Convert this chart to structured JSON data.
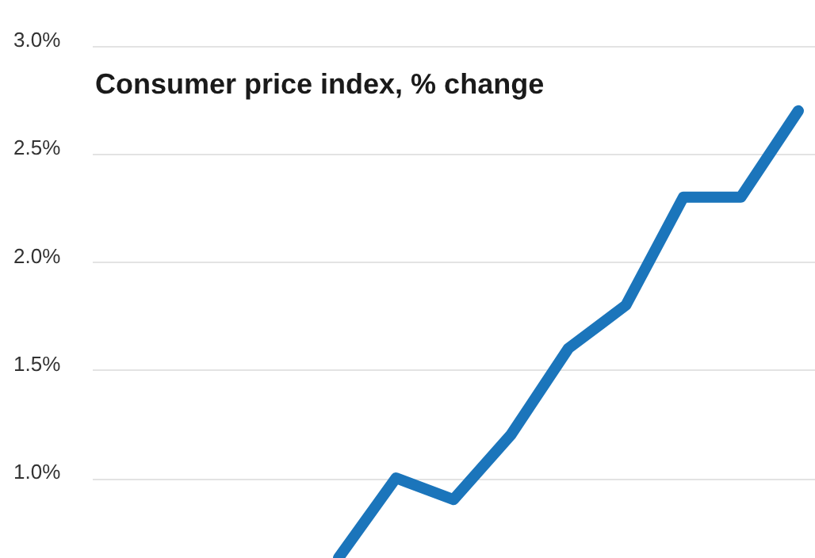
{
  "chart_data": {
    "type": "line",
    "title": "Consumer price index, % change",
    "categories": [
      null,
      null,
      null,
      null,
      null,
      null,
      null,
      null,
      null,
      null,
      null,
      null,
      null
    ],
    "series": [
      {
        "color": "#1b75bb",
        "values": [
          null,
          null,
          null,
          null,
          0.63,
          1.0,
          0.9,
          1.2,
          1.6,
          1.8,
          2.3,
          2.3,
          2.7
        ]
      }
    ],
    "ylim": [
      0.6,
      3.0
    ],
    "yticks": [
      {
        "value": 1.0,
        "label": "1.0%"
      },
      {
        "value": 1.5,
        "label": "1.5%"
      },
      {
        "value": 2.0,
        "label": "2.0%"
      },
      {
        "value": 2.5,
        "label": "2.5%"
      },
      {
        "value": 3.0,
        "label": "3.0%"
      }
    ],
    "grid": "y",
    "tick_labels": "y",
    "legend": false,
    "marker": "none",
    "line_style": "solid"
  }
}
